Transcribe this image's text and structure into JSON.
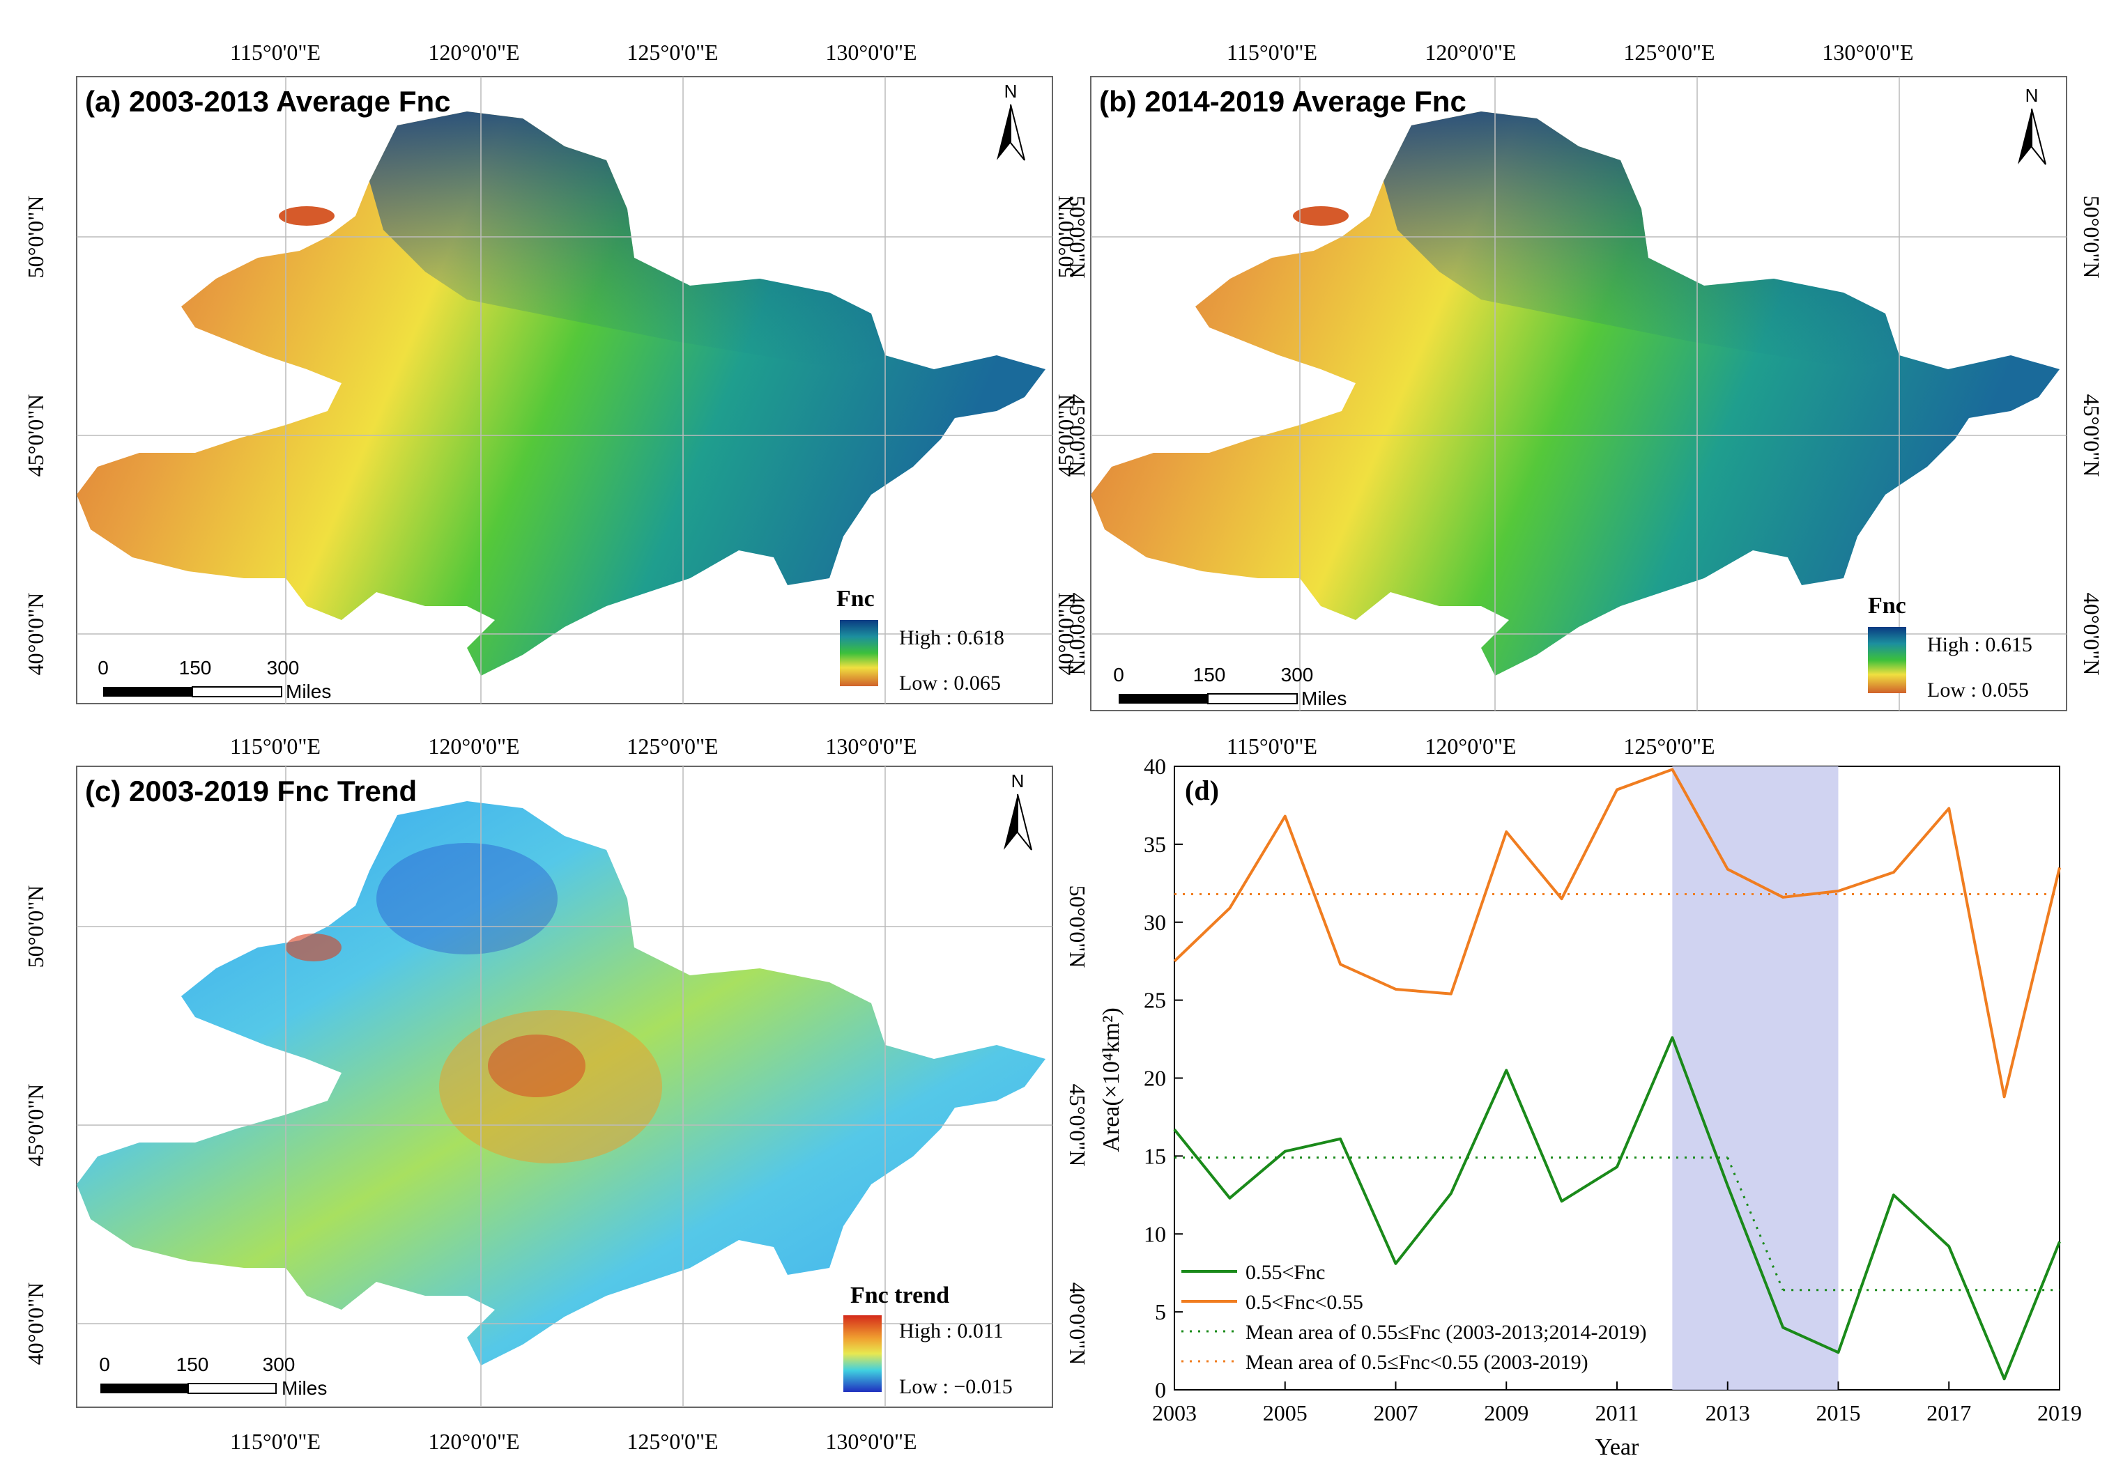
{
  "colors": {
    "fnc_high": "#0a3a82",
    "fnc_mid_blue": "#1c8f9e",
    "fnc_green": "#3cc03c",
    "fnc_yellow": "#f0e040",
    "fnc_orange": "#e38a3a",
    "fnc_low": "#d0612a",
    "trend_high": "#d42a1a",
    "trend_low": "#1f2fbf",
    "series_green": "#1a8a1a",
    "series_orange": "#f07d20",
    "highlight": "#c8cbef"
  },
  "panels": {
    "a": {
      "title": "(a) 2003-2013 Average Fnc",
      "north": "N",
      "lon_labels": [
        "115°0'0\"E",
        "120°0'0\"E",
        "125°0'0\"E",
        "130°0'0\"E"
      ],
      "lat_labels": [
        "50°0'0\"N",
        "45°0'0\"N",
        "40°0'0\"N"
      ],
      "legend_title": "Fnc",
      "legend_high": "High : 0.618",
      "legend_low": "Low : 0.065",
      "scale_ticks": [
        "0",
        "150",
        "300"
      ],
      "scale_unit": "Miles"
    },
    "b": {
      "title": "(b) 2014-2019 Average Fnc",
      "north": "N",
      "lon_labels": [
        "115°0'0\"E",
        "120°0'0\"E",
        "125°0'0\"E",
        "130°0'0\"E"
      ],
      "lat_labels": [
        "50°0'0\"N",
        "45°0'0\"N",
        "40°0'0\"N"
      ],
      "legend_title": "Fnc",
      "legend_high": "High : 0.615",
      "legend_low": "Low : 0.055",
      "scale_ticks": [
        "0",
        "150",
        "300"
      ],
      "scale_unit": "Miles"
    },
    "c": {
      "title": "(c) 2003-2019 Fnc Trend",
      "north": "N",
      "lon_labels": [
        "115°0'0\"E",
        "120°0'0\"E",
        "125°0'0\"E",
        "130°0'0\"E"
      ],
      "lat_labels": [
        "50°0'0\"N",
        "45°0'0\"N",
        "40°0'0\"N"
      ],
      "legend_title": "Fnc trend",
      "legend_high": "High : 0.011",
      "legend_low": "Low : −0.015",
      "scale_ticks": [
        "0",
        "150",
        "300"
      ],
      "scale_unit": "Miles"
    }
  },
  "chart_data": {
    "type": "line",
    "panel_label": "(d)",
    "title": "",
    "xlabel": "Year",
    "ylabel": "Area(×10⁴km²)",
    "xlim": [
      2003,
      2019
    ],
    "ylim": [
      0,
      40
    ],
    "x_ticks": [
      2003,
      2005,
      2007,
      2009,
      2011,
      2013,
      2015,
      2017,
      2019
    ],
    "y_ticks": [
      0,
      5,
      10,
      15,
      20,
      25,
      30,
      35,
      40
    ],
    "x": [
      2003,
      2004,
      2005,
      2006,
      2007,
      2008,
      2009,
      2010,
      2011,
      2012,
      2013,
      2014,
      2015,
      2016,
      2017,
      2018,
      2019
    ],
    "series": [
      {
        "name": "0.55<Fnc",
        "color": "#1a8a1a",
        "values": [
          16.7,
          12.3,
          15.3,
          16.1,
          8.1,
          12.6,
          20.5,
          12.1,
          14.3,
          22.6,
          13.1,
          4.0,
          2.4,
          12.5,
          9.2,
          0.7,
          9.5
        ]
      },
      {
        "name": "0.5<Fnc<0.55",
        "color": "#f07d20",
        "values": [
          27.5,
          30.9,
          36.8,
          27.3,
          25.7,
          25.4,
          35.8,
          31.5,
          38.5,
          39.8,
          33.4,
          31.6,
          32.0,
          33.2,
          37.3,
          18.8,
          33.5
        ]
      }
    ],
    "mean_lines": [
      {
        "name": "Mean area of 0.55≤Fnc (2003-2013;2014-2019)",
        "color": "#1a8a1a",
        "segments": [
          {
            "from": 2003,
            "to": 2013,
            "value": 14.9
          },
          {
            "from": 2014,
            "to": 2019,
            "value": 6.4
          }
        ],
        "connector": {
          "from": 2013,
          "to": 2014,
          "from_value": 14.9,
          "to_value": 6.4
        }
      },
      {
        "name": "Mean area of 0.5≤Fnc<0.55 (2003-2019)",
        "color": "#f07d20",
        "segments": [
          {
            "from": 2003,
            "to": 2019,
            "value": 31.8
          }
        ]
      }
    ],
    "highlight_range": [
      2012,
      2015
    ],
    "legend": [
      "0.55<Fnc",
      "0.5<Fnc<0.55",
      "Mean area of 0.55≤Fnc (2003-2013;2014-2019)",
      "Mean area of 0.5≤Fnc<0.55 (2003-2019)"
    ],
    "legend_position": "bottom-left"
  }
}
